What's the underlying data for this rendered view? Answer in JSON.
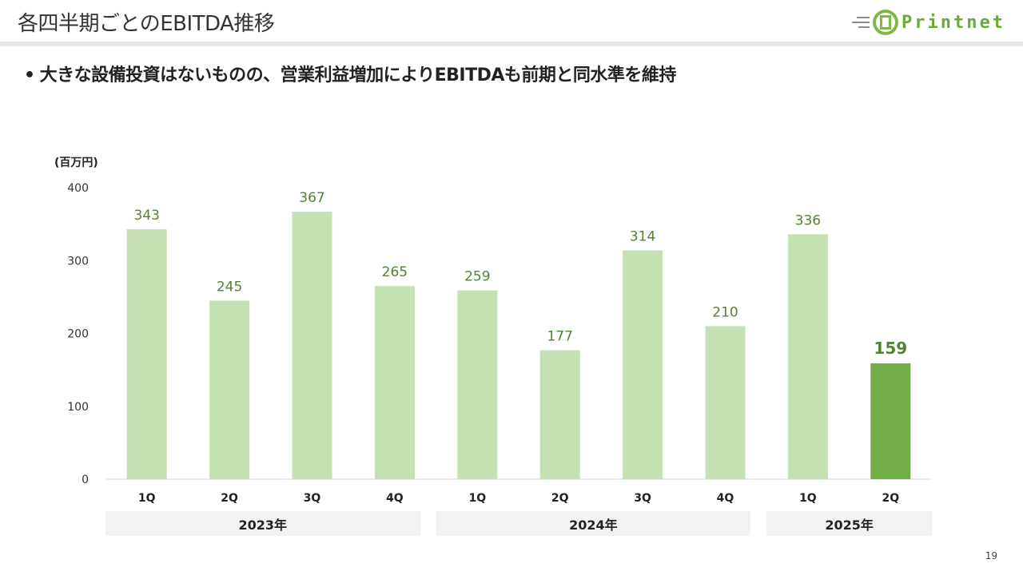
{
  "header": {
    "title": "各四半期ごとのEBITDA推移",
    "logo_text": "Printnet"
  },
  "subtitle": {
    "bullet": "•",
    "text": "大きな設備投資はないものの、営業利益増加によりEBITDAも前期と同水準を維持"
  },
  "chart_data": {
    "type": "bar",
    "unit_label": "(百万円)",
    "ylim": [
      0,
      400
    ],
    "yticks": [
      0,
      100,
      200,
      300,
      400
    ],
    "categories": [
      "1Q",
      "2Q",
      "3Q",
      "4Q",
      "1Q",
      "2Q",
      "3Q",
      "4Q",
      "1Q",
      "2Q"
    ],
    "values": [
      343,
      245,
      367,
      265,
      259,
      177,
      314,
      210,
      336,
      159
    ],
    "highlight_index": 9,
    "groups": [
      {
        "label": "2023年",
        "count": 4
      },
      {
        "label": "2024年",
        "count": 4
      },
      {
        "label": "2025年",
        "count": 2
      }
    ],
    "colors": {
      "bar": "#c5e0b3",
      "highlight": "#70ad47",
      "label": "#548235"
    }
  },
  "page_number": "19"
}
